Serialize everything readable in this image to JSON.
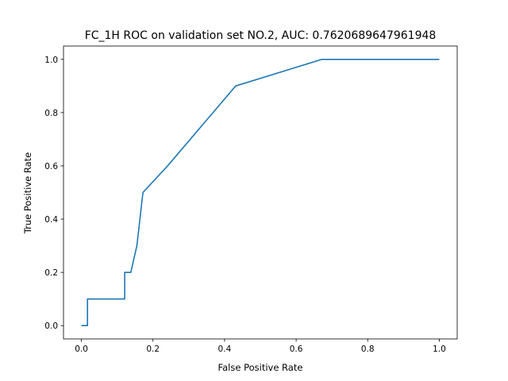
{
  "chart_data": {
    "type": "line",
    "title": "FC_1H ROC on validation set NO.2, AUC: 0.7620689647961948",
    "xlabel": "False Positive Rate",
    "ylabel": "True Positive Rate",
    "xlim": [
      -0.05,
      1.05
    ],
    "ylim": [
      -0.05,
      1.05
    ],
    "xticks": [
      0.0,
      0.2,
      0.4,
      0.6,
      0.8,
      1.0
    ],
    "yticks": [
      0.0,
      0.2,
      0.4,
      0.6,
      0.8,
      1.0
    ],
    "xtick_labels": [
      "0.0",
      "0.2",
      "0.4",
      "0.6",
      "0.8",
      "1.0"
    ],
    "ytick_labels": [
      "0.0",
      "0.2",
      "0.4",
      "0.6",
      "0.8",
      "1.0"
    ],
    "grid": false,
    "series": [
      {
        "color": "#1f77b4",
        "x": [
          0.0,
          0.017,
          0.017,
          0.121,
          0.121,
          0.138,
          0.155,
          0.172,
          0.241,
          0.431,
          0.672,
          1.0
        ],
        "y": [
          0.0,
          0.0,
          0.1,
          0.1,
          0.2,
          0.2,
          0.3,
          0.5,
          0.6,
          0.9,
          1.0,
          1.0
        ]
      }
    ]
  }
}
